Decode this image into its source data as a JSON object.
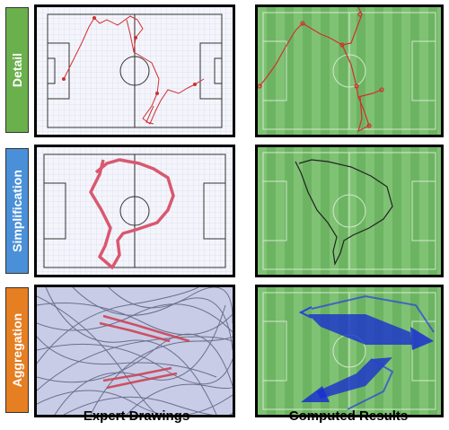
{
  "rows": [
    {
      "label": "Detail",
      "color": "#6ab04c"
    },
    {
      "label": "Simplification",
      "color": "#4a90d9"
    },
    {
      "label": "Aggregation",
      "color": "#e67e22"
    }
  ],
  "columns": {
    "left_title": "Expert Drawings",
    "right_title": "Computed Results"
  },
  "colors": {
    "paper_grid": "#c9cde6",
    "paper_bg": "#f4f5fb",
    "pitch_green": "#7fc274",
    "pitch_green_dark": "#6db462",
    "sketch_red": "#d03030",
    "heavy_red": "#cc4455",
    "arrow_blue": "#1a2fd0",
    "dark_line": "#333333"
  }
}
